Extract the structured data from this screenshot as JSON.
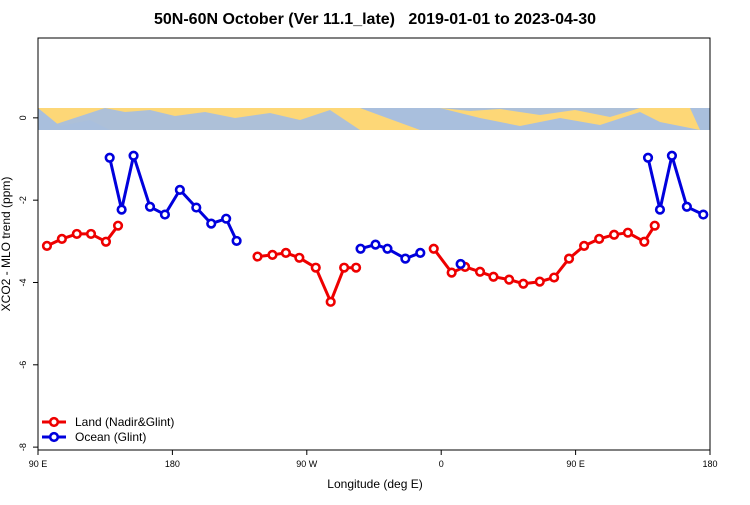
{
  "chart_data": {
    "type": "line",
    "title": "50N-60N October (Ver 11.1_late)   2019-01-01 to 2023-04-30",
    "x_label": "Longitude (deg E)",
    "y_label": "XCO2 - MLO trend (ppm)",
    "xlim": [
      90,
      540
    ],
    "ylim": [
      -8.07,
      1.94
    ],
    "xticks": [
      {
        "value": 90,
        "label": "90 E"
      },
      {
        "value": 180,
        "label": "180"
      },
      {
        "value": 270,
        "label": "90 W"
      },
      {
        "value": 360,
        "label": "0"
      },
      {
        "value": 450,
        "label": "90 E"
      },
      {
        "value": 540,
        "label": "180"
      }
    ],
    "yticks": [
      0,
      -2,
      -4,
      -6,
      -8
    ],
    "legend": "bottom-left",
    "series": [
      {
        "name": "Land (Nadir&Glint)",
        "color": "#ee0000",
        "x": [
          96,
          106,
          116,
          125.5,
          135.5,
          143.6,
          null,
          237,
          247,
          256,
          265,
          276,
          286,
          295,
          303,
          null,
          355,
          367,
          376,
          386,
          395,
          405.5,
          415,
          426,
          435.6,
          445.6,
          455.7,
          465.8,
          475.8,
          485,
          496,
          503
        ],
        "values": [
          -3.11,
          -2.94,
          -2.82,
          -2.82,
          -3.01,
          -2.62,
          null,
          -3.37,
          -3.33,
          -3.28,
          -3.4,
          -3.64,
          -4.47,
          -3.64,
          -3.64,
          null,
          -3.18,
          -3.76,
          -3.62,
          -3.74,
          -3.86,
          -3.93,
          -4.03,
          -3.98,
          -3.88,
          -3.42,
          -3.11,
          -2.94,
          -2.84,
          -2.79,
          -3.01,
          -2.62
        ]
      },
      {
        "name": "Ocean (Glint)",
        "color": "#0000dd",
        "x": [
          138,
          146,
          154,
          165,
          175,
          185,
          196,
          206,
          216,
          223,
          null,
          306,
          316,
          324,
          336,
          346,
          null,
          373,
          null,
          498.5,
          506.5,
          514.5,
          524.5,
          535.5
        ],
        "values": [
          -0.97,
          -2.23,
          -0.92,
          -2.16,
          -2.35,
          -1.75,
          -2.18,
          -2.57,
          -2.45,
          -2.99,
          null,
          -3.18,
          -3.08,
          -3.18,
          -3.42,
          -3.28,
          null,
          -3.55,
          null,
          -0.97,
          -2.23,
          -0.92,
          -2.16,
          -2.35
        ]
      }
    ]
  }
}
